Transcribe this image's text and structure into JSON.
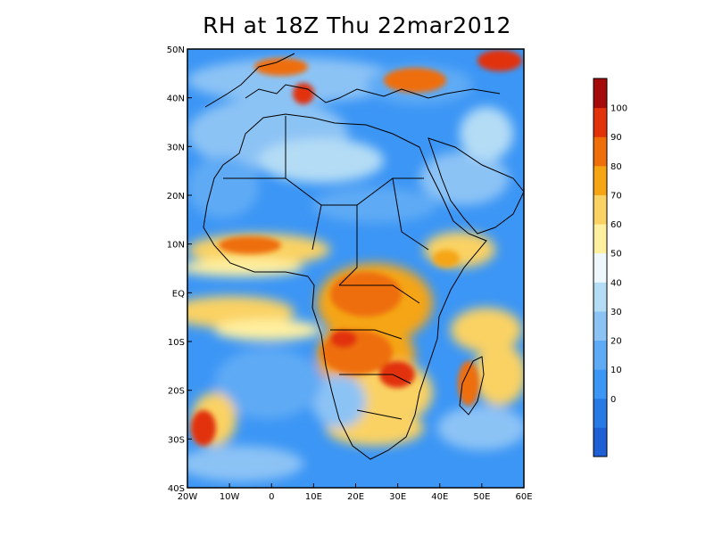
{
  "title": "RH at 18Z Thu 22mar2012",
  "lat_ticks": [
    {
      "value": 50,
      "label": "50N"
    },
    {
      "value": 40,
      "label": "40N"
    },
    {
      "value": 30,
      "label": "30N"
    },
    {
      "value": 20,
      "label": "20N"
    },
    {
      "value": 10,
      "label": "10N"
    },
    {
      "value": 0,
      "label": "EQ"
    },
    {
      "value": -10,
      "label": "10S"
    },
    {
      "value": -20,
      "label": "20S"
    },
    {
      "value": -30,
      "label": "30S"
    },
    {
      "value": -40,
      "label": "40S"
    }
  ],
  "lon_ticks": [
    {
      "value": -20,
      "label": "20W"
    },
    {
      "value": -10,
      "label": "10W"
    },
    {
      "value": 0,
      "label": "0"
    },
    {
      "value": 10,
      "label": "10E"
    },
    {
      "value": 20,
      "label": "20E"
    },
    {
      "value": 30,
      "label": "30E"
    },
    {
      "value": 40,
      "label": "40E"
    },
    {
      "value": 50,
      "label": "50E"
    },
    {
      "value": 60,
      "label": "60E"
    }
  ],
  "extent": {
    "lon_min": -20,
    "lon_max": 60,
    "lat_min": -40,
    "lat_max": 50
  },
  "colorbar": {
    "levels": [
      {
        "color": "#1e5fd6",
        "label": ""
      },
      {
        "color": "#2878e6",
        "label": "0"
      },
      {
        "color": "#3c96f5",
        "label": "10"
      },
      {
        "color": "#5faaf5",
        "label": "20"
      },
      {
        "color": "#8cc3f5",
        "label": "30"
      },
      {
        "color": "#b4dcf5",
        "label": "40"
      },
      {
        "color": "#eef8fc",
        "label": "50"
      },
      {
        "color": "#fff0a0",
        "label": "60"
      },
      {
        "color": "#fad264",
        "label": "70"
      },
      {
        "color": "#f5a514",
        "label": "80"
      },
      {
        "color": "#ee6e0a",
        "label": "90"
      },
      {
        "color": "#e1320a",
        "label": "100"
      },
      {
        "color": "#a50a0a",
        "label": ""
      }
    ]
  }
}
